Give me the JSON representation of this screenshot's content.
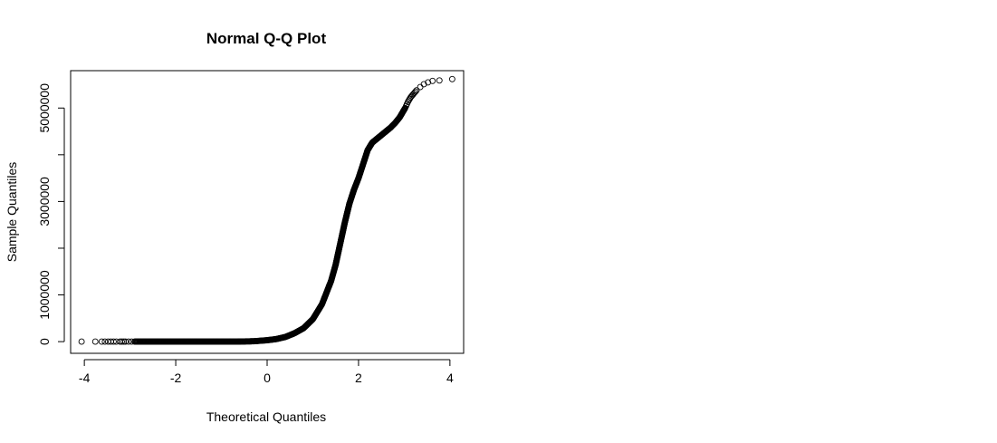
{
  "chart_data": {
    "type": "scatter",
    "title": "Normal Q-Q Plot",
    "xlabel": "Theoretical Quantiles",
    "ylabel": "Sample Quantiles",
    "xlim": [
      -4.3,
      4.3
    ],
    "ylim": [
      -250000,
      5800000
    ],
    "x_ticks": [
      -4,
      -2,
      0,
      2,
      4
    ],
    "x_tick_labels": [
      "-4",
      "-2",
      "0",
      "2",
      "4"
    ],
    "y_ticks": [
      0,
      1000000,
      2000000,
      3000000,
      4000000,
      5000000
    ],
    "y_tick_labels": [
      "0",
      "1000000",
      "",
      "3000000",
      "",
      "5000000"
    ],
    "grid": false,
    "marker": "open-circle",
    "points": [
      [
        -4.06,
        0
      ],
      [
        -3.76,
        0
      ],
      [
        -3.62,
        0
      ],
      [
        -3.55,
        0
      ],
      [
        -3.48,
        0
      ],
      [
        -3.42,
        0
      ],
      [
        -3.36,
        0
      ],
      [
        -3.3,
        0
      ],
      [
        -3.22,
        0
      ],
      [
        -3.1,
        0
      ],
      [
        -2.9,
        0
      ],
      [
        -2.6,
        0
      ],
      [
        -2.2,
        0
      ],
      [
        -1.8,
        0
      ],
      [
        -1.4,
        0
      ],
      [
        -1.0,
        0
      ],
      [
        -0.6,
        2000
      ],
      [
        -0.3,
        8000
      ],
      [
        0.0,
        30000
      ],
      [
        0.2,
        55000
      ],
      [
        0.4,
        100000
      ],
      [
        0.6,
        180000
      ],
      [
        0.8,
        290000
      ],
      [
        1.0,
        480000
      ],
      [
        1.2,
        800000
      ],
      [
        1.4,
        1300000
      ],
      [
        1.5,
        1650000
      ],
      [
        1.6,
        2100000
      ],
      [
        1.7,
        2550000
      ],
      [
        1.8,
        2950000
      ],
      [
        1.9,
        3250000
      ],
      [
        2.0,
        3500000
      ],
      [
        2.1,
        3800000
      ],
      [
        2.2,
        4100000
      ],
      [
        2.3,
        4260000
      ],
      [
        2.4,
        4340000
      ],
      [
        2.5,
        4420000
      ],
      [
        2.6,
        4500000
      ],
      [
        2.7,
        4580000
      ],
      [
        2.8,
        4680000
      ],
      [
        2.9,
        4800000
      ],
      [
        2.96,
        4900000
      ],
      [
        3.02,
        5000000
      ],
      [
        3.08,
        5130000
      ],
      [
        3.14,
        5230000
      ],
      [
        3.2,
        5300000
      ],
      [
        3.27,
        5380000
      ],
      [
        3.35,
        5450000
      ],
      [
        3.43,
        5510000
      ],
      [
        3.52,
        5550000
      ],
      [
        3.62,
        5580000
      ],
      [
        3.77,
        5590000
      ],
      [
        4.05,
        5620000
      ]
    ]
  }
}
